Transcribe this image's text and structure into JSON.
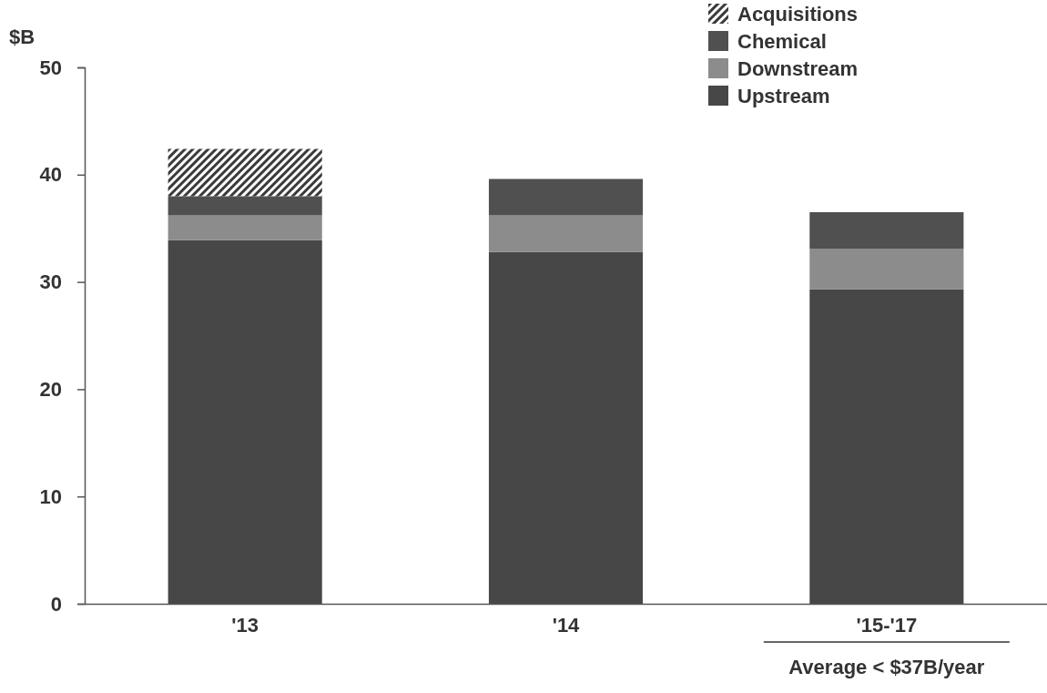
{
  "chart_data": {
    "type": "bar",
    "ylabel": "$B",
    "stacked": true,
    "categories": [
      "'13",
      "'14",
      "'15-'17"
    ],
    "series": [
      {
        "name": "Upstream",
        "color": "#474747",
        "values": [
          33.9,
          32.8,
          29.3
        ]
      },
      {
        "name": "Downstream",
        "color": "#8c8c8c",
        "values": [
          2.3,
          3.4,
          3.8
        ]
      },
      {
        "name": "Chemical",
        "color": "#505050",
        "values": [
          1.8,
          3.4,
          3.4
        ]
      },
      {
        "name": "Acquisitions",
        "color": "#3a3a3a",
        "values": [
          4.4,
          null,
          null
        ]
      }
    ],
    "ylim": [
      0,
      50
    ],
    "yticks": [
      0,
      10,
      20,
      30,
      40,
      50
    ],
    "grid": false,
    "legend": "top right",
    "annotations": [
      "Average < $37B/year"
    ]
  }
}
